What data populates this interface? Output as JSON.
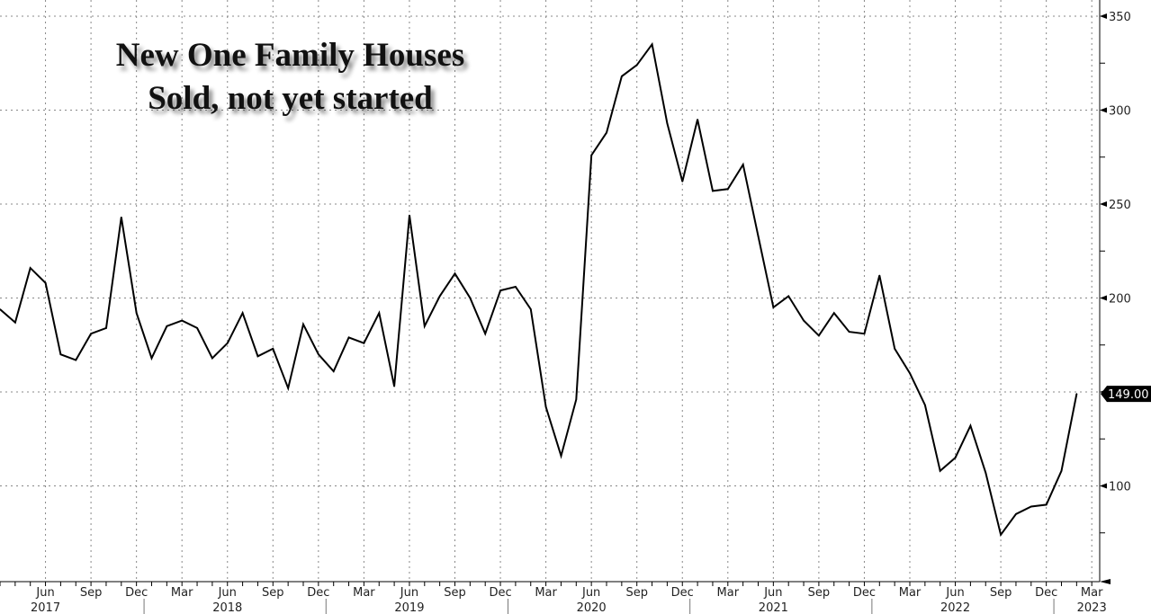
{
  "chart_data": {
    "type": "line",
    "title": "New One Family Houses",
    "subtitle": "Sold, not yet started",
    "xlabel": "",
    "ylabel": "",
    "ylim": [
      49,
      357
    ],
    "grid": true,
    "x": [
      "2017-03",
      "2017-04",
      "2017-05",
      "2017-06",
      "2017-07",
      "2017-08",
      "2017-09",
      "2017-10",
      "2017-11",
      "2017-12",
      "2018-01",
      "2018-02",
      "2018-03",
      "2018-04",
      "2018-05",
      "2018-06",
      "2018-07",
      "2018-08",
      "2018-09",
      "2018-10",
      "2018-11",
      "2018-12",
      "2019-01",
      "2019-02",
      "2019-03",
      "2019-04",
      "2019-05",
      "2019-06",
      "2019-07",
      "2019-08",
      "2019-09",
      "2019-10",
      "2019-11",
      "2019-12",
      "2020-01",
      "2020-02",
      "2020-03",
      "2020-04",
      "2020-05",
      "2020-06",
      "2020-07",
      "2020-08",
      "2020-09",
      "2020-10",
      "2020-11",
      "2020-12",
      "2021-01",
      "2021-02",
      "2021-03",
      "2021-04",
      "2021-05",
      "2021-06",
      "2021-07",
      "2021-08",
      "2021-09",
      "2021-10",
      "2021-11",
      "2021-12",
      "2022-01",
      "2022-02",
      "2022-03",
      "2022-04",
      "2022-05",
      "2022-06",
      "2022-07",
      "2022-08",
      "2022-09",
      "2022-10",
      "2022-11",
      "2022-12",
      "2023-01",
      "2023-02"
    ],
    "series": [
      {
        "name": "New One Family Houses Sold, not yet started",
        "values": [
          194,
          187,
          216,
          208,
          170,
          167,
          181,
          184,
          243,
          192,
          168,
          185,
          188,
          184,
          168,
          176,
          192,
          169,
          173,
          152,
          186,
          170,
          161,
          179,
          176,
          192,
          153,
          244,
          185,
          201,
          213,
          200,
          181,
          204,
          206,
          194,
          142,
          116,
          146,
          276,
          288,
          318,
          324,
          335,
          293,
          262,
          295,
          257,
          258,
          271,
          233,
          195,
          201,
          188,
          180,
          192,
          182,
          181,
          212,
          173,
          160,
          143,
          108,
          115,
          132,
          107,
          74,
          85,
          89,
          90,
          108,
          149
        ]
      }
    ],
    "last_value_label": "149.00",
    "y_ticks": [
      {
        "value": 350,
        "label": "350"
      },
      {
        "value": 300,
        "label": "300"
      },
      {
        "value": 250,
        "label": "250"
      },
      {
        "value": 200,
        "label": "200"
      },
      {
        "value": 150,
        "label": ""
      },
      {
        "value": 100,
        "label": "100"
      }
    ],
    "x_ticks": [
      {
        "index": 3,
        "label": "Jun"
      },
      {
        "index": 6,
        "label": "Sep"
      },
      {
        "index": 9,
        "label": "Dec"
      },
      {
        "index": 12,
        "label": "Mar"
      },
      {
        "index": 15,
        "label": "Jun"
      },
      {
        "index": 18,
        "label": "Sep"
      },
      {
        "index": 21,
        "label": "Dec"
      },
      {
        "index": 24,
        "label": "Mar"
      },
      {
        "index": 27,
        "label": "Jun"
      },
      {
        "index": 30,
        "label": "Sep"
      },
      {
        "index": 33,
        "label": "Dec"
      },
      {
        "index": 36,
        "label": "Mar"
      },
      {
        "index": 39,
        "label": "Jun"
      },
      {
        "index": 42,
        "label": "Sep"
      },
      {
        "index": 45,
        "label": "Dec"
      },
      {
        "index": 48,
        "label": "Mar"
      },
      {
        "index": 51,
        "label": "Jun"
      },
      {
        "index": 54,
        "label": "Sep"
      },
      {
        "index": 57,
        "label": "Dec"
      },
      {
        "index": 60,
        "label": "Mar"
      },
      {
        "index": 63,
        "label": "Jun"
      },
      {
        "index": 66,
        "label": "Sep"
      },
      {
        "index": 69,
        "label": "Dec"
      },
      {
        "index": 72,
        "label": "Mar"
      }
    ],
    "year_labels": [
      {
        "index": 3,
        "label": "2017"
      },
      {
        "index": 15,
        "label": "2018"
      },
      {
        "index": 27,
        "label": "2019"
      },
      {
        "index": 39,
        "label": "2020"
      },
      {
        "index": 51,
        "label": "2021"
      },
      {
        "index": 63,
        "label": "2022"
      },
      {
        "index": 72,
        "label": "2023"
      }
    ],
    "colors": {
      "line": "#000000",
      "grid": "#888888",
      "label_bg": "#000000"
    }
  }
}
